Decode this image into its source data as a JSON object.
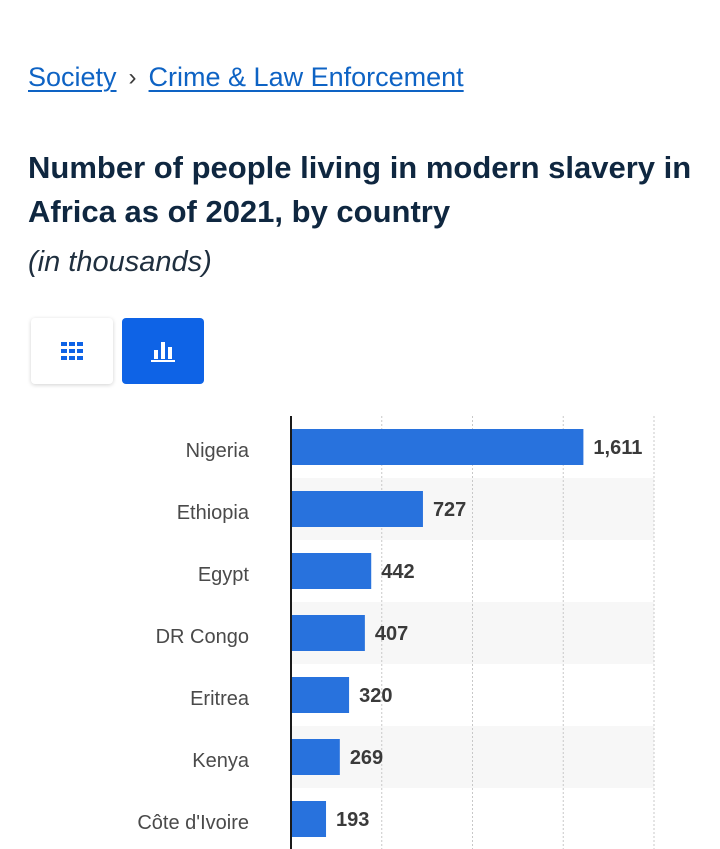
{
  "breadcrumb": {
    "items": [
      "Society",
      "Crime & Law Enforcement"
    ],
    "separator": "›"
  },
  "title": "Number of people living in modern slavery in Africa as of 2021, by country",
  "subtitle": "(in thousands)",
  "view_toggle": {
    "table_icon": "grid-icon",
    "chart_icon": "bar-chart-icon",
    "active": "chart"
  },
  "colors": {
    "bar": "#2872dd",
    "accent": "#0e63e6",
    "link": "#0e63c4",
    "title": "#0f2740"
  },
  "chart_data": {
    "type": "bar",
    "orientation": "horizontal",
    "categories": [
      "Nigeria",
      "Ethiopia",
      "Egypt",
      "DR Congo",
      "Eritrea",
      "Kenya",
      "Côte d'Ivoire"
    ],
    "values": [
      1611,
      727,
      442,
      407,
      320,
      269,
      193
    ],
    "value_labels": [
      "1,611",
      "727",
      "442",
      "407",
      "320",
      "269",
      "193"
    ],
    "xlim": [
      0,
      2000
    ],
    "grid": true,
    "title": "",
    "xlabel": "",
    "ylabel": ""
  }
}
